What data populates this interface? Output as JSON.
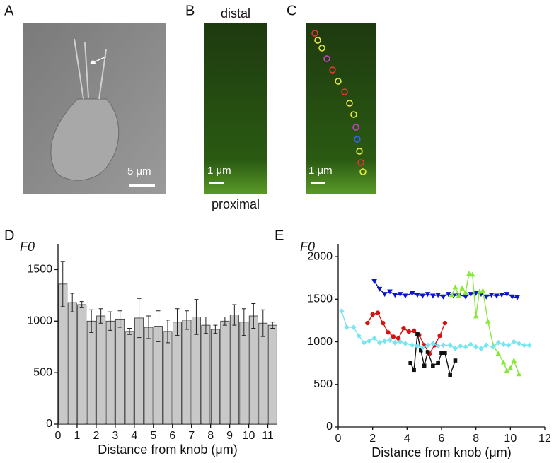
{
  "figure": {
    "panel_labels": [
      "A",
      "B",
      "C",
      "D",
      "E"
    ],
    "distal": "distal",
    "proximal": "proximal",
    "scale_a": "5 μm",
    "scale_b": "1 μm",
    "scale_c": "1 μm"
  },
  "chart_data": [
    {
      "type": "bar",
      "ylabel": "F0",
      "xlabel": "Distance from knob (μm)",
      "color": "#c8c8c8",
      "x": [
        0.25,
        0.75,
        1.25,
        1.75,
        2.25,
        2.75,
        3.25,
        3.75,
        4.25,
        4.75,
        5.25,
        5.75,
        6.25,
        6.75,
        7.25,
        7.75,
        8.25,
        8.75,
        9.25,
        9.75,
        10.25,
        10.75,
        11.25
      ],
      "values": [
        1360,
        1180,
        1160,
        1000,
        1050,
        1000,
        1020,
        900,
        1030,
        940,
        950,
        900,
        990,
        1010,
        1040,
        960,
        920,
        1000,
        1060,
        990,
        1050,
        980,
        960
      ],
      "errors": [
        220,
        90,
        30,
        110,
        70,
        90,
        80,
        30,
        190,
        110,
        150,
        110,
        130,
        90,
        170,
        80,
        40,
        40,
        100,
        130,
        120,
        130,
        30
      ],
      "xlim": [
        0,
        11.5
      ],
      "xticks": [
        0,
        1,
        2,
        3,
        4,
        5,
        6,
        7,
        8,
        9,
        10,
        11
      ],
      "ylim": [
        0,
        1750
      ],
      "yticks": [
        0,
        500,
        1000,
        1500
      ]
    },
    {
      "type": "line",
      "ylabel": "F0",
      "xlabel": "Distance from knob (μm)",
      "xlim": [
        0,
        12
      ],
      "xticks": [
        0,
        2,
        4,
        6,
        8,
        10,
        12
      ],
      "ylim": [
        0,
        2150
      ],
      "yticks": [
        0,
        500,
        1000,
        1500,
        2000
      ],
      "series": [
        {
          "color": "#0a14c8",
          "marker": "triangle-down",
          "x": [
            2.1,
            2.4,
            2.7,
            3.0,
            3.3,
            3.6,
            3.9,
            4.3,
            4.6,
            4.9,
            5.2,
            5.5,
            5.8,
            6.1,
            6.4,
            6.7,
            7.0,
            7.4,
            7.7,
            8.0,
            8.3,
            8.6,
            8.9,
            9.2,
            9.5,
            9.8,
            10.1,
            10.4
          ],
          "values": [
            1710,
            1620,
            1560,
            1590,
            1550,
            1560,
            1540,
            1570,
            1550,
            1540,
            1560,
            1540,
            1550,
            1530,
            1560,
            1540,
            1550,
            1530,
            1560,
            1570,
            1560,
            1530,
            1550,
            1540,
            1550,
            1560,
            1530,
            1520
          ]
        },
        {
          "color": "#88e838",
          "marker": "triangle-up",
          "x": [
            6.6,
            6.8,
            7.0,
            7.2,
            7.4,
            7.6,
            7.8,
            8.0,
            8.2,
            8.4,
            8.7,
            9.0,
            9.3,
            9.6,
            9.8,
            10.0,
            10.2,
            10.5
          ],
          "values": [
            1550,
            1640,
            1540,
            1630,
            1580,
            1800,
            1790,
            1300,
            1590,
            1600,
            1240,
            960,
            860,
            760,
            660,
            690,
            780,
            620
          ]
        },
        {
          "color": "#d41414",
          "marker": "circle",
          "x": [
            1.7,
            2.0,
            2.3,
            2.6,
            2.9,
            3.2,
            3.5,
            3.8,
            4.1,
            4.4,
            4.7,
            5.0,
            5.3,
            5.6,
            5.9,
            6.2
          ],
          "values": [
            1220,
            1320,
            1340,
            1220,
            1110,
            1060,
            1040,
            1160,
            1120,
            1130,
            1080,
            960,
            860,
            960,
            1070,
            1220
          ]
        },
        {
          "color": "#111111",
          "marker": "square",
          "x": [
            4.2,
            4.4,
            4.6,
            4.8,
            5.0,
            5.2,
            5.5,
            5.8,
            6.0,
            6.2,
            6.5,
            6.8
          ],
          "values": [
            750,
            670,
            1090,
            900,
            720,
            880,
            720,
            750,
            870,
            870,
            610,
            780
          ]
        },
        {
          "color": "#78e6f0",
          "marker": "diamond",
          "x": [
            0.2,
            0.5,
            0.9,
            1.2,
            1.5,
            1.8,
            2.1,
            2.4,
            2.7,
            3.0,
            3.3,
            3.6,
            3.9,
            4.3,
            4.6,
            4.9,
            5.2,
            5.5,
            5.8,
            6.1,
            6.5,
            6.8,
            7.1,
            7.4,
            7.7,
            8.0,
            8.3,
            8.6,
            9.0,
            9.3,
            9.6,
            9.9,
            10.2,
            10.5,
            10.8,
            11.1
          ],
          "values": [
            1360,
            1170,
            1170,
            1070,
            990,
            1010,
            1040,
            990,
            1010,
            1020,
            990,
            1000,
            980,
            960,
            950,
            930,
            960,
            980,
            950,
            960,
            960,
            920,
            950,
            940,
            970,
            940,
            920,
            960,
            940,
            990,
            970,
            960,
            1000,
            980,
            960,
            960
          ]
        }
      ]
    }
  ]
}
